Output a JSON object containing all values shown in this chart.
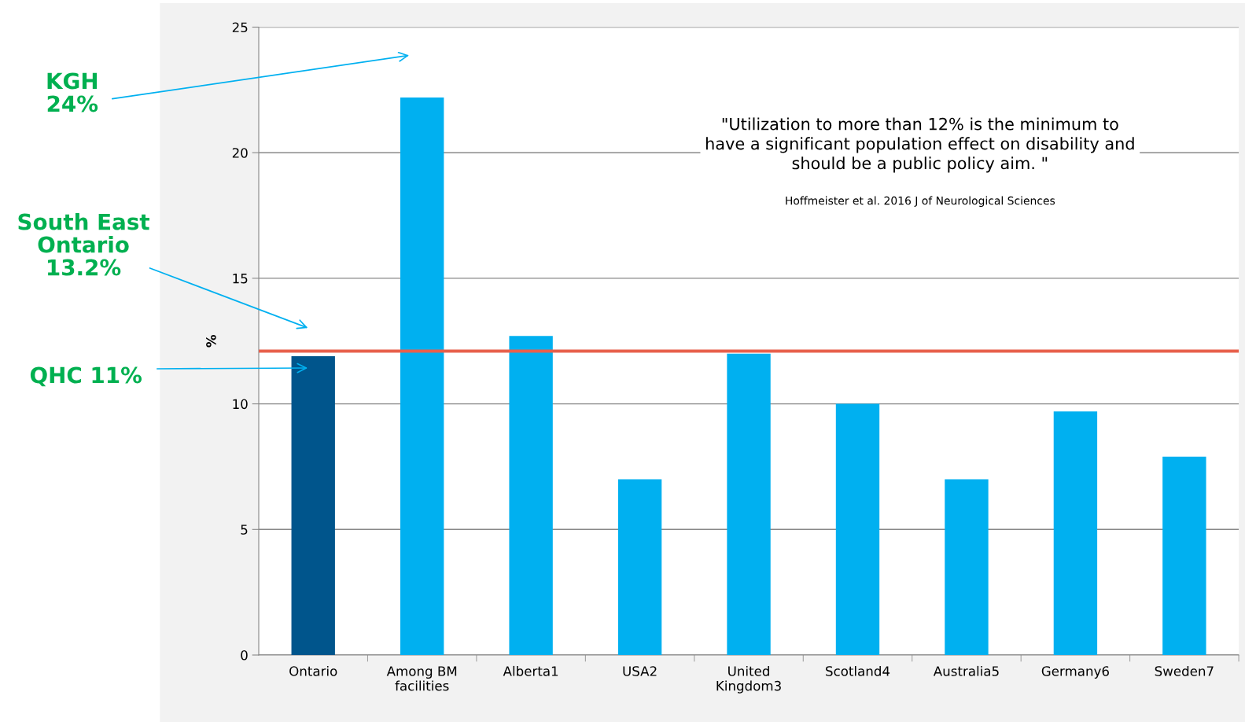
{
  "chart_data": {
    "type": "bar",
    "ylabel": "%",
    "categories": [
      "Ontario",
      "Among BM facilities",
      "Alberta1",
      "USA2",
      "United Kingdom3",
      "Scotland4",
      "Australia5",
      "Germany6",
      "Sweden7"
    ],
    "values": [
      11.9,
      22.2,
      12.7,
      7.0,
      12.0,
      10.0,
      7.0,
      9.7,
      7.9
    ],
    "colors": [
      "#00558c",
      "#00b0f0",
      "#00b0f0",
      "#00b0f0",
      "#00b0f0",
      "#00b0f0",
      "#00b0f0",
      "#00b0f0",
      "#00b0f0"
    ],
    "ylim": [
      0,
      25
    ],
    "yticks": [
      0,
      5,
      10,
      15,
      20,
      25
    ],
    "grid": "y",
    "ref_lines": [
      {
        "axis": "y",
        "value": 12.1,
        "color": "#e8604c"
      }
    ],
    "annotations": [
      "KGH\n24%",
      "South East\nOntario\n13.2%",
      "QHC 11%",
      "\"Utilization to more than 12% is the minimum to\nhave a significant population effect on disability and\nshould be a public policy aim. \"",
      "Hoffmeister et al. 2016 J of Neurological Sciences"
    ]
  }
}
